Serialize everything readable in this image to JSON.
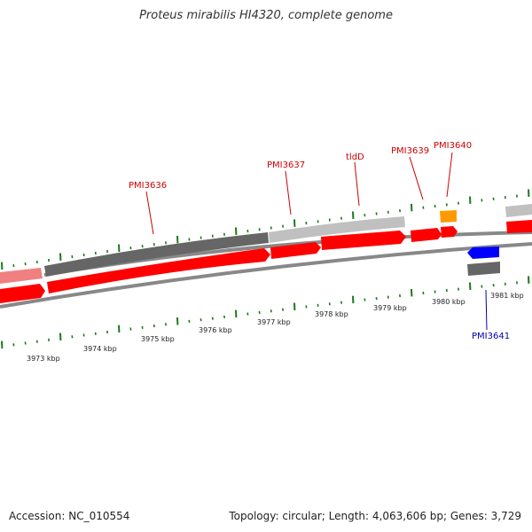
{
  "title": "Proteus mirabilis HI4320, complete genome",
  "footer": {
    "accession": "Accession: NC_010554",
    "topology": "Topology: circular; Length: 4,063,606 bp; Genes: 3,729"
  },
  "colors": {
    "gene_red": "#ff0000",
    "tick_green": "#1a7a1a",
    "label_red": "#cc0000",
    "label_blue": "#0000aa",
    "dark_gray": "#666666",
    "light_gray": "#c0c0c0",
    "pink": "#f08080",
    "orange": "#ff9900",
    "blue": "#0000ff"
  },
  "gene_labels": [
    {
      "text": "PMI3636",
      "color": "red"
    },
    {
      "text": "PMI3637",
      "color": "red"
    },
    {
      "text": "tldD",
      "color": "red"
    },
    {
      "text": "PMI3639",
      "color": "red"
    },
    {
      "text": "PMI3640",
      "color": "red"
    },
    {
      "text": "PMI3641",
      "color": "blue"
    }
  ],
  "kbp_labels": [
    "3973 kbp",
    "3974 kbp",
    "3975 kbp",
    "3976 kbp",
    "3977 kbp",
    "3978 kbp",
    "3979 kbp",
    "3980 kbp",
    "3981 kbp"
  ]
}
